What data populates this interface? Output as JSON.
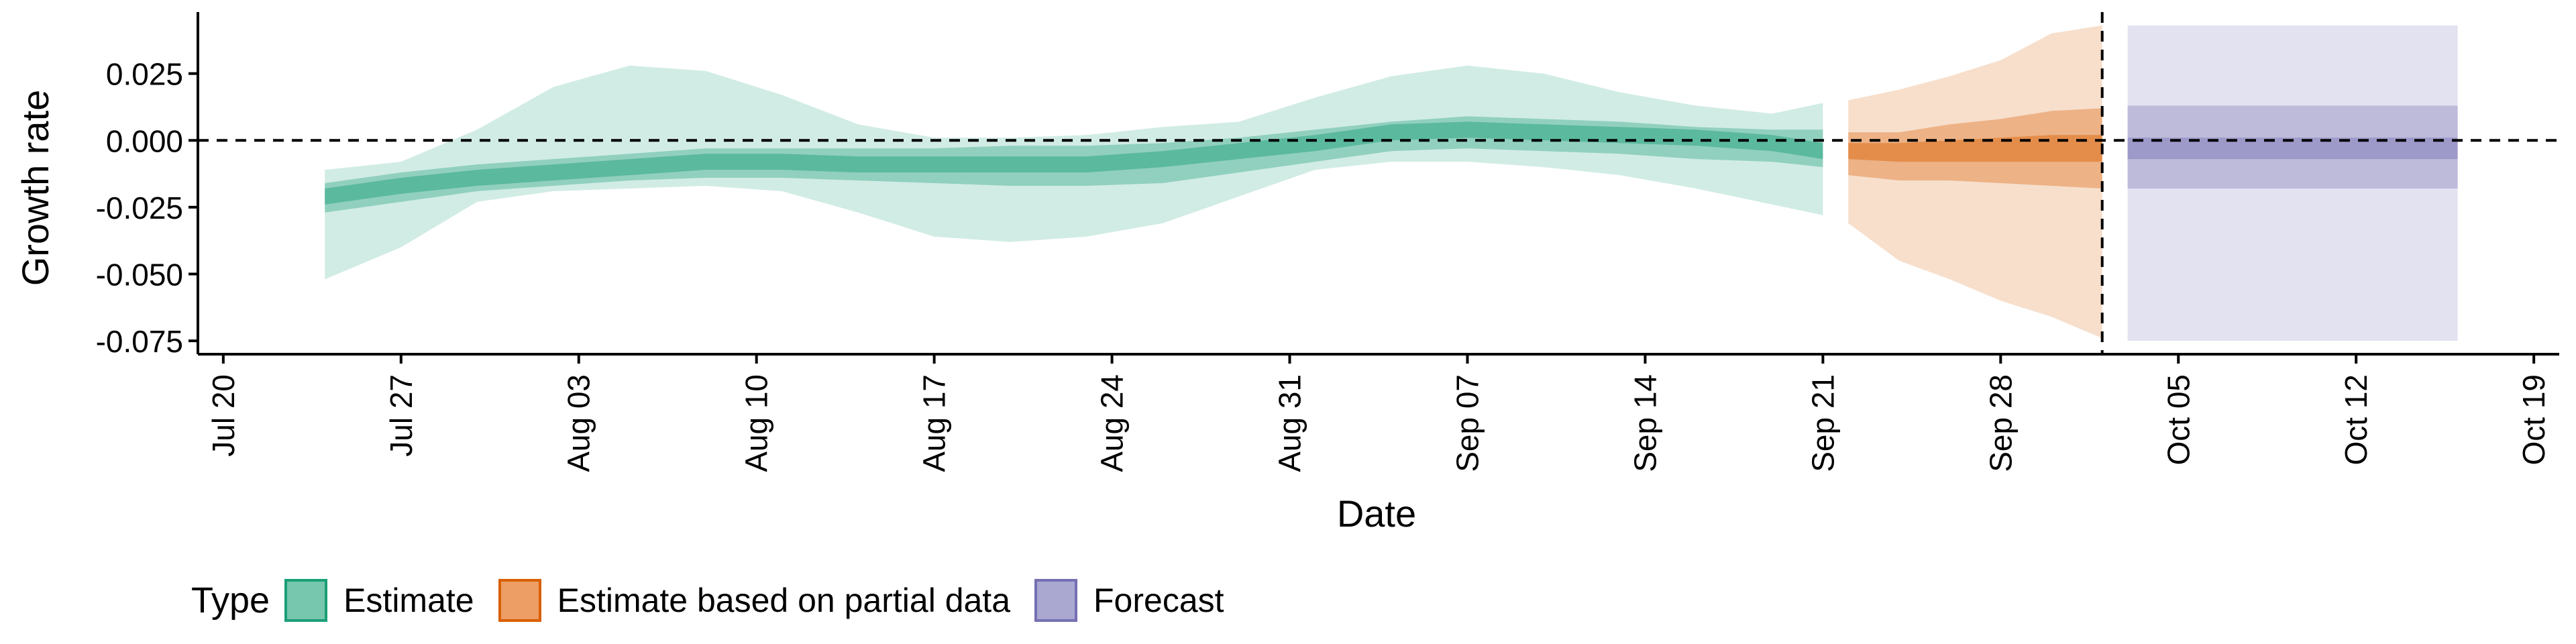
{
  "colors": {
    "Estimate": {
      "fill": "#1b9e77",
      "key": "#76c7ad",
      "border": "#1b9e77"
    },
    "Estimate based on partial data": {
      "fill": "#d95f02",
      "key": "#ec9e65",
      "border": "#d95f02"
    },
    "Forecast": {
      "fill": "#7570b3",
      "key": "#aaa7d1",
      "border": "#7570b3"
    }
  },
  "legend": {
    "title": "Type",
    "items": [
      {
        "label": "Estimate",
        "icon": "square-swatch"
      },
      {
        "label": "Estimate based on partial data",
        "icon": "square-swatch"
      },
      {
        "label": "Forecast",
        "icon": "square-swatch"
      }
    ]
  },
  "chart_data": {
    "type": "area",
    "xlabel": "Date",
    "ylabel": "Growth rate",
    "xlim": [
      "2020-07-19",
      "2020-10-20"
    ],
    "ylim": [
      -0.08,
      0.047
    ],
    "xticks": [
      {
        "date": "2020-07-20",
        "label": "Jul 20"
      },
      {
        "date": "2020-07-27",
        "label": "Jul 27"
      },
      {
        "date": "2020-08-03",
        "label": "Aug 03"
      },
      {
        "date": "2020-08-10",
        "label": "Aug 10"
      },
      {
        "date": "2020-08-17",
        "label": "Aug 17"
      },
      {
        "date": "2020-08-24",
        "label": "Aug 24"
      },
      {
        "date": "2020-08-31",
        "label": "Aug 31"
      },
      {
        "date": "2020-09-07",
        "label": "Sep 07"
      },
      {
        "date": "2020-09-14",
        "label": "Sep 14"
      },
      {
        "date": "2020-09-21",
        "label": "Sep 21"
      },
      {
        "date": "2020-09-28",
        "label": "Sep 28"
      },
      {
        "date": "2020-10-05",
        "label": "Oct 05"
      },
      {
        "date": "2020-10-12",
        "label": "Oct 12"
      },
      {
        "date": "2020-10-19",
        "label": "Oct 19"
      }
    ],
    "yticks": [
      {
        "value": 0.025,
        "label": "0.025"
      },
      {
        "value": 0.0,
        "label": "0.000"
      },
      {
        "value": -0.025,
        "label": "-0.025"
      },
      {
        "value": -0.05,
        "label": "-0.050"
      },
      {
        "value": -0.075,
        "label": "-0.075"
      }
    ],
    "reference_lines": [
      {
        "axis": "y",
        "value": 0,
        "style": "dashed"
      },
      {
        "axis": "x",
        "value": "2020-10-02",
        "style": "dashed"
      }
    ],
    "grid": false,
    "legend_position": "bottom",
    "series": [
      {
        "name": "Estimate",
        "color": "#1b9e77",
        "x": [
          "2020-07-24",
          "2020-07-27",
          "2020-07-30",
          "2020-08-02",
          "2020-08-05",
          "2020-08-08",
          "2020-08-11",
          "2020-08-14",
          "2020-08-17",
          "2020-08-20",
          "2020-08-23",
          "2020-08-26",
          "2020-08-29",
          "2020-09-01",
          "2020-09-04",
          "2020-09-07",
          "2020-09-10",
          "2020-09-13",
          "2020-09-16",
          "2020-09-19",
          "2020-09-21"
        ],
        "median": [
          -0.021,
          -0.017,
          -0.014,
          -0.012,
          -0.01,
          -0.008,
          -0.008,
          -0.009,
          -0.009,
          -0.009,
          -0.009,
          -0.007,
          -0.004,
          -0.001,
          0.003,
          0.004,
          0.003,
          0.002,
          0.001,
          -0.001,
          -0.004
        ],
        "lower_90": [
          -0.052,
          -0.04,
          -0.023,
          -0.019,
          -0.018,
          -0.017,
          -0.019,
          -0.027,
          -0.036,
          -0.038,
          -0.036,
          -0.031,
          -0.021,
          -0.011,
          -0.008,
          -0.008,
          -0.01,
          -0.013,
          -0.018,
          -0.024,
          -0.028
        ],
        "upper_90": [
          -0.011,
          -0.008,
          0.004,
          0.02,
          0.028,
          0.026,
          0.017,
          0.006,
          0.001,
          0.001,
          0.002,
          0.005,
          0.007,
          0.016,
          0.024,
          0.028,
          0.025,
          0.018,
          0.013,
          0.01,
          0.014
        ],
        "lower_50": [
          -0.027,
          -0.023,
          -0.019,
          -0.017,
          -0.015,
          -0.014,
          -0.014,
          -0.015,
          -0.016,
          -0.017,
          -0.017,
          -0.016,
          -0.012,
          -0.008,
          -0.004,
          -0.003,
          -0.004,
          -0.005,
          -0.007,
          -0.008,
          -0.01
        ],
        "upper_50": [
          -0.016,
          -0.012,
          -0.009,
          -0.007,
          -0.005,
          -0.003,
          -0.003,
          -0.003,
          -0.003,
          -0.002,
          -0.002,
          -0.001,
          0.001,
          0.004,
          0.007,
          0.009,
          0.008,
          0.007,
          0.005,
          0.004,
          0.004
        ],
        "lower_20": [
          -0.024,
          -0.02,
          -0.017,
          -0.015,
          -0.013,
          -0.011,
          -0.011,
          -0.012,
          -0.012,
          -0.012,
          -0.012,
          -0.01,
          -0.007,
          -0.004,
          0.0,
          0.001,
          0.0,
          -0.001,
          -0.002,
          -0.004,
          -0.007
        ],
        "upper_20": [
          -0.018,
          -0.014,
          -0.011,
          -0.009,
          -0.007,
          -0.005,
          -0.005,
          -0.006,
          -0.006,
          -0.006,
          -0.006,
          -0.004,
          -0.001,
          0.002,
          0.006,
          0.007,
          0.006,
          0.005,
          0.004,
          0.002,
          -0.001
        ]
      },
      {
        "name": "Estimate based on partial data",
        "color": "#d95f02",
        "x": [
          "2020-09-22",
          "2020-09-24",
          "2020-09-26",
          "2020-09-28",
          "2020-09-30",
          "2020-10-02"
        ],
        "median": [
          -0.004,
          -0.004,
          -0.003,
          -0.003,
          -0.003,
          -0.003
        ],
        "lower_90": [
          -0.031,
          -0.045,
          -0.052,
          -0.06,
          -0.066,
          -0.074
        ],
        "upper_90": [
          0.015,
          0.019,
          0.024,
          0.03,
          0.04,
          0.043
        ],
        "lower_50": [
          -0.013,
          -0.015,
          -0.015,
          -0.016,
          -0.017,
          -0.018
        ],
        "upper_50": [
          0.003,
          0.003,
          0.006,
          0.008,
          0.011,
          0.012
        ],
        "lower_20": [
          -0.007,
          -0.008,
          -0.008,
          -0.008,
          -0.008,
          -0.008
        ],
        "upper_20": [
          -0.001,
          -0.001,
          0.0,
          0.001,
          0.002,
          0.002
        ]
      },
      {
        "name": "Forecast",
        "color": "#7570b3",
        "x": [
          "2020-10-03",
          "2020-10-16"
        ],
        "median": [
          -0.003,
          -0.003
        ],
        "lower_90": [
          -0.075,
          -0.075
        ],
        "upper_90": [
          0.043,
          0.043
        ],
        "lower_50": [
          -0.018,
          -0.018
        ],
        "upper_50": [
          0.013,
          0.013
        ],
        "lower_20": [
          -0.007,
          -0.007
        ],
        "upper_20": [
          0.001,
          0.001
        ]
      }
    ]
  }
}
